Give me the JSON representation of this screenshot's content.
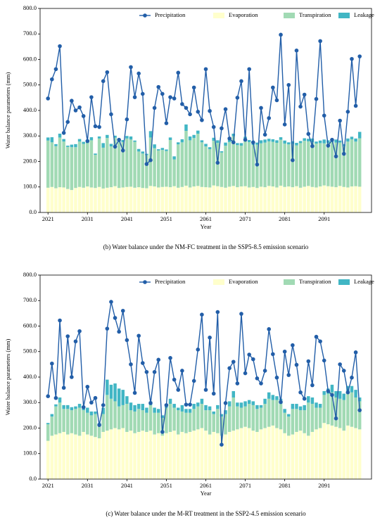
{
  "chart_data": [
    {
      "type": "combo",
      "title": "(b) Water balance under the NM-FC treatment in the SSP5-8.5 emission scenario",
      "xlabel": "Year",
      "ylabel": "Water balance parameters (mm)",
      "x": [
        2021,
        2022,
        2023,
        2024,
        2025,
        2026,
        2027,
        2028,
        2029,
        2030,
        2031,
        2032,
        2033,
        2034,
        2035,
        2036,
        2037,
        2038,
        2039,
        2040,
        2041,
        2042,
        2043,
        2044,
        2045,
        2046,
        2047,
        2048,
        2049,
        2050,
        2051,
        2052,
        2053,
        2054,
        2055,
        2056,
        2057,
        2058,
        2059,
        2060,
        2061,
        2062,
        2063,
        2064,
        2065,
        2066,
        2067,
        2068,
        2069,
        2070,
        2071,
        2072,
        2073,
        2074,
        2075,
        2076,
        2077,
        2078,
        2079,
        2080,
        2081,
        2082,
        2083,
        2084,
        2085,
        2086,
        2087,
        2088,
        2089,
        2090,
        2091,
        2092,
        2093,
        2094,
        2095,
        2096,
        2097,
        2098,
        2099,
        2100
      ],
      "xlim": [
        2019,
        2103
      ],
      "xticks": [
        2021,
        2031,
        2041,
        2051,
        2061,
        2071,
        2081,
        2091
      ],
      "ylim": [
        0,
        800
      ],
      "yticks": [
        {
          "value": 0,
          "label": "0.0"
        },
        {
          "value": 100,
          "label": "100.0"
        },
        {
          "value": 200,
          "label": "200.0"
        },
        {
          "value": 300,
          "label": "300.0"
        },
        {
          "value": 400,
          "label": "400.0"
        },
        {
          "value": 500,
          "label": "500.0"
        },
        {
          "value": 600,
          "label": "600.0"
        },
        {
          "value": 700,
          "label": "700.0"
        },
        {
          "value": 800,
          "label": "800.0"
        }
      ],
      "legend": "upper right",
      "series": [
        {
          "name": "Precipitation",
          "color": "#225ea8",
          "mark": "line",
          "values": [
            447,
            522,
            562,
            652,
            312,
            355,
            438,
            400,
            412,
            378,
            280,
            452,
            338,
            335,
            515,
            550,
            385,
            258,
            285,
            243,
            365,
            570,
            452,
            545,
            465,
            190,
            205,
            410,
            492,
            465,
            350,
            452,
            447,
            548,
            425,
            410,
            385,
            490,
            395,
            362,
            562,
            398,
            335,
            195,
            330,
            405,
            290,
            275,
            450,
            515,
            285,
            562,
            275,
            188,
            410,
            305,
            370,
            490,
            440,
            697,
            345,
            500,
            205,
            635,
            415,
            462,
            308,
            260,
            445,
            672,
            380,
            262,
            285,
            220,
            360,
            230,
            395,
            602,
            418,
            612
          ]
        },
        {
          "name": "Evaporation",
          "color": "#ffffcc",
          "mark": "stack",
          "values": [
            97,
            100,
            95,
            99,
            98,
            92,
            88,
            96,
            100,
            97,
            102,
            98,
            96,
            100,
            94,
            97,
            99,
            103,
            96,
            98,
            100,
            101,
            97,
            99,
            96,
            95,
            104,
            102,
            98,
            100,
            101,
            99,
            103,
            97,
            100,
            105,
            98,
            102,
            104,
            100,
            99,
            98,
            106,
            103,
            100,
            97,
            101,
            104,
            99,
            102,
            103,
            98,
            100,
            96,
            101,
            99,
            104,
            102,
            98,
            105,
            100,
            102,
            99,
            103,
            97,
            101,
            104,
            100,
            98,
            102,
            106,
            103,
            101,
            99,
            104,
            100,
            98,
            102,
            103,
            101
          ]
        },
        {
          "name": "Transpiration",
          "color": "#a1dab4",
          "mark": "stack",
          "values": [
            185,
            175,
            165,
            195,
            180,
            165,
            168,
            160,
            178,
            172,
            170,
            185,
            130,
            190,
            160,
            195,
            160,
            190,
            180,
            178,
            190,
            185,
            180,
            140,
            135,
            130,
            190,
            150,
            145,
            145,
            140,
            185,
            105,
            170,
            175,
            215,
            185,
            190,
            205,
            175,
            160,
            150,
            175,
            170,
            135,
            165,
            175,
            195,
            165,
            160,
            182,
            178,
            165,
            170,
            170,
            175,
            175,
            175,
            175,
            180,
            170,
            165,
            170,
            160,
            175,
            180,
            175,
            175,
            172,
            170,
            165,
            170,
            175,
            175,
            170,
            160,
            180,
            185,
            175,
            190
          ]
        },
        {
          "name": "Leakage",
          "color": "#41b6c4",
          "mark": "stack",
          "values": [
            12,
            20,
            8,
            15,
            10,
            5,
            10,
            12,
            10,
            8,
            5,
            12,
            5,
            8,
            18,
            12,
            10,
            8,
            10,
            8,
            10,
            12,
            5,
            10,
            8,
            5,
            25,
            15,
            5,
            8,
            6,
            10,
            12,
            8,
            12,
            25,
            15,
            12,
            12,
            8,
            10,
            8,
            12,
            10,
            5,
            12,
            15,
            10,
            8,
            10,
            12,
            8,
            10,
            8,
            12,
            12,
            10,
            10,
            10,
            10,
            12,
            8,
            10,
            10,
            8,
            10,
            10,
            15,
            8,
            10,
            15,
            10,
            12,
            12,
            8,
            8,
            12,
            10,
            12,
            25
          ]
        }
      ]
    },
    {
      "type": "combo",
      "title": "(c) Water balance under the M-RT treatment in the SSP2-4.5 emission scenario",
      "xlabel": "Year",
      "ylabel": "Water balance parameters (mm)",
      "x": [
        2021,
        2022,
        2023,
        2024,
        2025,
        2026,
        2027,
        2028,
        2029,
        2030,
        2031,
        2032,
        2033,
        2034,
        2035,
        2036,
        2037,
        2038,
        2039,
        2040,
        2041,
        2042,
        2043,
        2044,
        2045,
        2046,
        2047,
        2048,
        2049,
        2050,
        2051,
        2052,
        2053,
        2054,
        2055,
        2056,
        2057,
        2058,
        2059,
        2060,
        2061,
        2062,
        2063,
        2064,
        2065,
        2066,
        2067,
        2068,
        2069,
        2070,
        2071,
        2072,
        2073,
        2074,
        2075,
        2076,
        2077,
        2078,
        2079,
        2080,
        2081,
        2082,
        2083,
        2084,
        2085,
        2086,
        2087,
        2088,
        2089,
        2090,
        2091,
        2092,
        2093,
        2094,
        2095,
        2096,
        2097,
        2098,
        2099,
        2100
      ],
      "xlim": [
        2019,
        2103
      ],
      "xticks": [
        2021,
        2031,
        2041,
        2051,
        2061,
        2071,
        2081,
        2091
      ],
      "ylim": [
        0,
        800
      ],
      "yticks": [
        {
          "value": 0,
          "label": "0.0"
        },
        {
          "value": 100,
          "label": "100.0"
        },
        {
          "value": 200,
          "label": "200.0"
        },
        {
          "value": 300,
          "label": "300.0"
        },
        {
          "value": 400,
          "label": "400.0"
        },
        {
          "value": 500,
          "label": "500.0"
        },
        {
          "value": 600,
          "label": "600.0"
        },
        {
          "value": 700,
          "label": "700.0"
        },
        {
          "value": 800,
          "label": "800.0"
        }
      ],
      "legend": "upper right",
      "series": [
        {
          "name": "Precipitation",
          "color": "#225ea8",
          "mark": "line",
          "values": [
            325,
            453,
            318,
            622,
            358,
            560,
            400,
            540,
            580,
            282,
            362,
            300,
            318,
            212,
            290,
            590,
            695,
            632,
            578,
            660,
            545,
            450,
            338,
            562,
            455,
            420,
            298,
            420,
            468,
            185,
            290,
            475,
            390,
            350,
            425,
            292,
            292,
            385,
            508,
            645,
            350,
            555,
            335,
            655,
            135,
            298,
            435,
            460,
            375,
            648,
            415,
            488,
            470,
            395,
            375,
            425,
            588,
            490,
            398,
            302,
            500,
            408,
            525,
            448,
            340,
            315,
            462,
            368,
            558,
            540,
            465,
            345,
            330,
            238,
            450,
            425,
            340,
            398,
            497,
            270
          ]
        },
        {
          "name": "Evaporation",
          "color": "#ffffcc",
          "mark": "stack",
          "values": [
            150,
            170,
            175,
            180,
            185,
            175,
            180,
            175,
            170,
            185,
            175,
            170,
            165,
            160,
            185,
            190,
            195,
            200,
            195,
            200,
            185,
            190,
            180,
            185,
            190,
            185,
            190,
            175,
            180,
            170,
            180,
            185,
            190,
            175,
            185,
            180,
            185,
            190,
            195,
            200,
            190,
            175,
            185,
            180,
            170,
            175,
            185,
            190,
            195,
            200,
            205,
            200,
            190,
            185,
            195,
            200,
            205,
            210,
            200,
            195,
            180,
            170,
            175,
            185,
            190,
            180,
            170,
            185,
            195,
            200,
            220,
            215,
            210,
            205,
            200,
            190,
            210,
            205,
            200,
            195
          ]
        },
        {
          "name": "Transpiration",
          "color": "#a1dab4",
          "mark": "stack",
          "values": [
            65,
            75,
            110,
            120,
            90,
            100,
            90,
            100,
            110,
            85,
            85,
            80,
            90,
            55,
            70,
            140,
            120,
            105,
            90,
            90,
            110,
            80,
            85,
            90,
            80,
            75,
            100,
            85,
            80,
            70,
            100,
            110,
            90,
            95,
            80,
            80,
            75,
            85,
            90,
            95,
            80,
            95,
            70,
            95,
            75,
            80,
            100,
            130,
            90,
            80,
            80,
            95,
            100,
            90,
            85,
            95,
            110,
            100,
            110,
            100,
            80,
            75,
            100,
            90,
            80,
            90,
            130,
            110,
            85,
            80,
            110,
            120,
            130,
            115,
            115,
            120,
            125,
            135,
            120,
            110
          ]
        },
        {
          "name": "Leakage",
          "color": "#41b6c4",
          "mark": "stack",
          "values": [
            5,
            10,
            8,
            20,
            15,
            15,
            12,
            10,
            15,
            10,
            20,
            15,
            10,
            5,
            25,
            60,
            55,
            70,
            70,
            60,
            30,
            30,
            25,
            20,
            25,
            20,
            15,
            20,
            15,
            10,
            15,
            20,
            15,
            10,
            25,
            15,
            15,
            20,
            15,
            20,
            20,
            15,
            10,
            15,
            10,
            15,
            20,
            25,
            15,
            20,
            20,
            15,
            15,
            15,
            10,
            20,
            25,
            20,
            15,
            20,
            15,
            10,
            20,
            20,
            15,
            20,
            25,
            25,
            20,
            15,
            15,
            20,
            30,
            25,
            30,
            25,
            30,
            25,
            30,
            15
          ]
        }
      ]
    }
  ]
}
